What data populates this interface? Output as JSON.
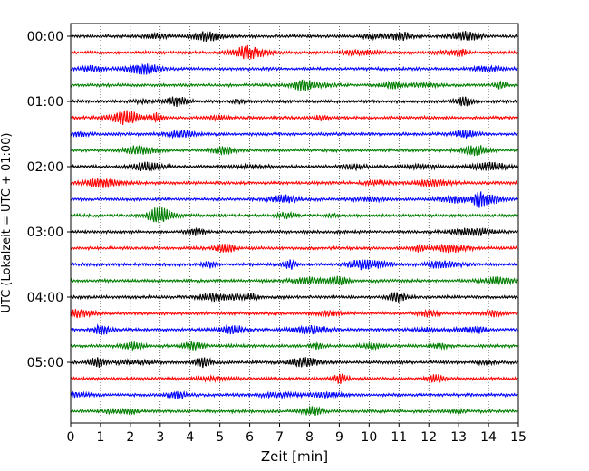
{
  "chart_data": {
    "type": "line",
    "xlabel": "Zeit  [min]",
    "ylabel": "UTC (Lokalzeit = UTC + 01:00)",
    "xlim": [
      0,
      15
    ],
    "x_ticks": [
      "0",
      "1",
      "2",
      "3",
      "4",
      "5",
      "6",
      "7",
      "8",
      "9",
      "10",
      "11",
      "12",
      "13",
      "14",
      "15"
    ],
    "y_ticks": [
      "00:00",
      "01:00",
      "02:00",
      "03:00",
      "04:00",
      "05:00"
    ],
    "grid": "vertical-dotted",
    "trace_colors": [
      "#000000",
      "#ff0000",
      "#0000ff",
      "#007f00"
    ],
    "trace_count": 24,
    "trace_interval_minutes": 15
  }
}
